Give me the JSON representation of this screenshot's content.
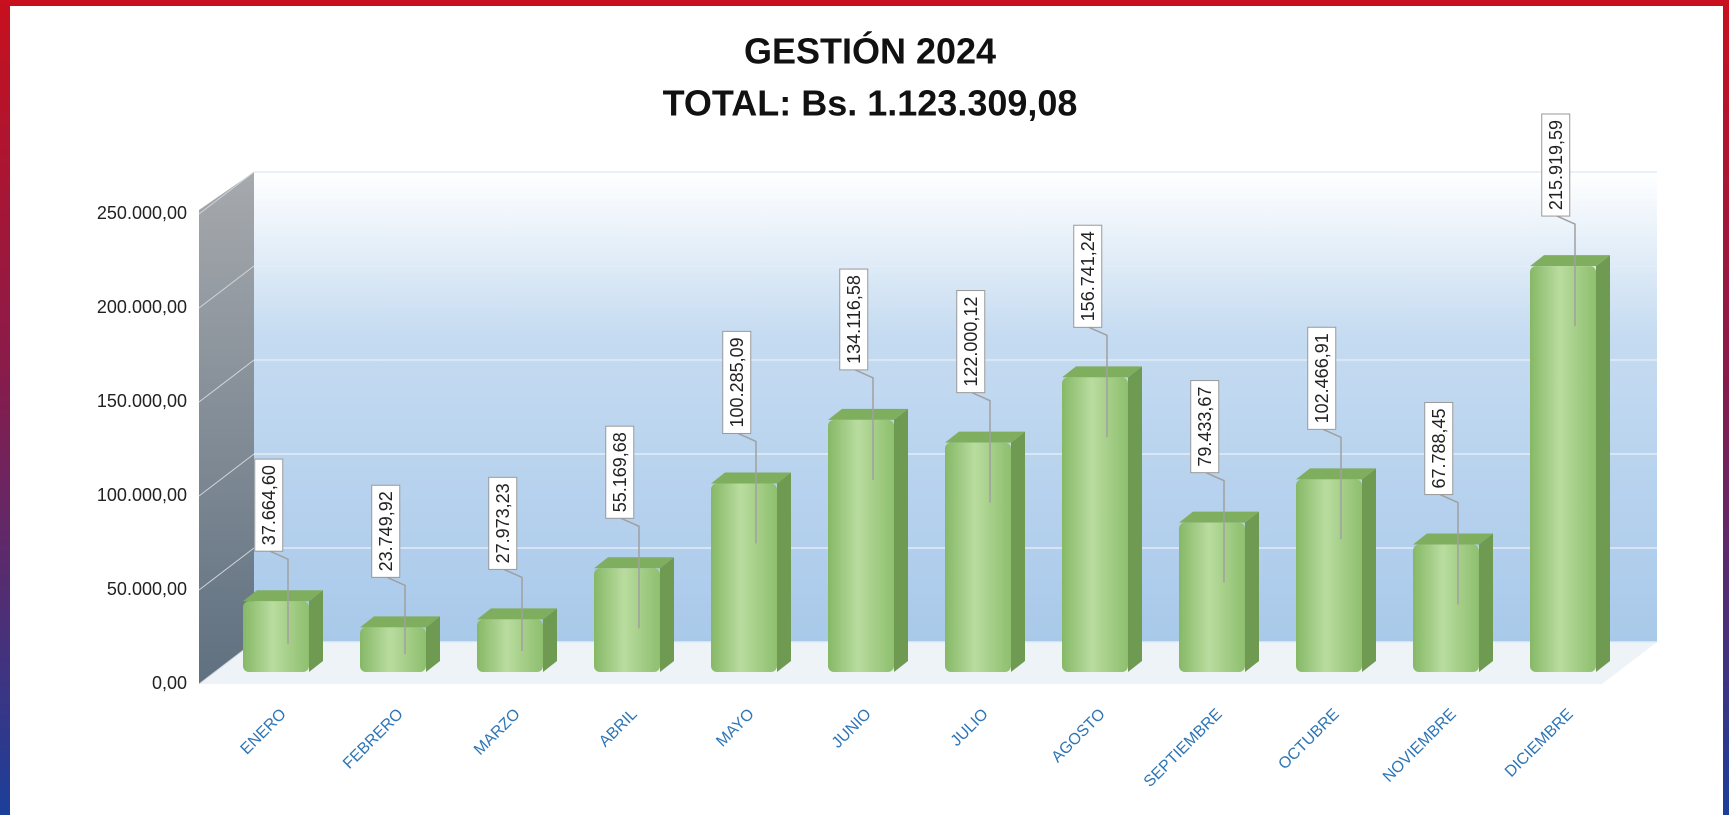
{
  "chart_data": {
    "type": "bar3d",
    "title": "GESTIÓN 2024",
    "subtitle": "TOTAL: Bs. 1.123.309,08",
    "categories": [
      "ENERO",
      "FEBRERO",
      "MARZO",
      "ABRIL",
      "MAYO",
      "JUNIO",
      "JULIO",
      "AGOSTO",
      "SEPTIEMBRE",
      "OCTUBRE",
      "NOVIEMBRE",
      "DICIEMBRE"
    ],
    "values": [
      37664.6,
      23749.92,
      27973.23,
      55169.68,
      100285.09,
      134116.58,
      122000.12,
      156741.24,
      79433.67,
      102466.91,
      67788.45,
      215919.59
    ],
    "value_labels": [
      "37.664,60",
      "23.749,92",
      "27.973,23",
      "55.169,68",
      "100.285,09",
      "134.116,58",
      "122.000,12",
      "156.741,24",
      "79.433,67",
      "102.466,91",
      "67.788,45",
      "215.919,59"
    ],
    "color": "#9dcb7e",
    "ylim": [
      0,
      250000
    ],
    "yticks": [
      {
        "value": 0,
        "label": "0,00"
      },
      {
        "value": 50000,
        "label": "50.000,00"
      },
      {
        "value": 100000,
        "label": "100.000,00"
      },
      {
        "value": 150000,
        "label": "150.000,00"
      },
      {
        "value": 200000,
        "label": "200.000,00"
      },
      {
        "value": 250000,
        "label": "250.000,00"
      }
    ],
    "grid": true
  }
}
